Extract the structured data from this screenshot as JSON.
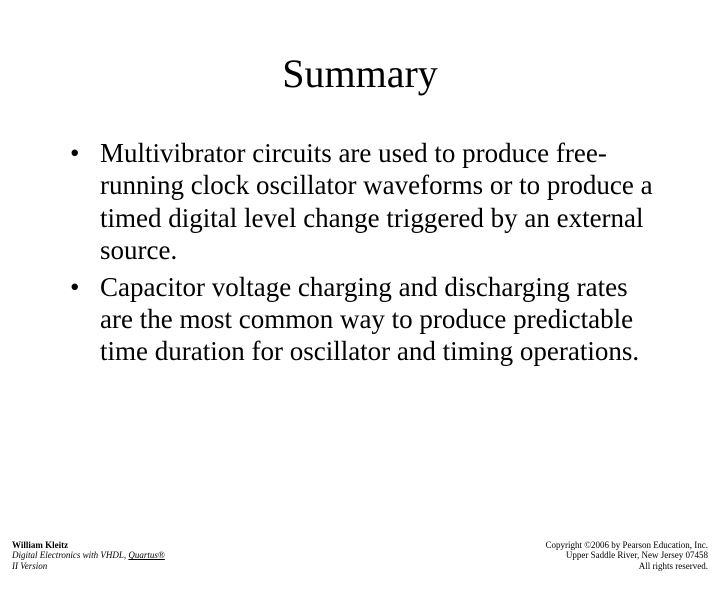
{
  "title": "Summary",
  "bullets": [
    "Multivibrator circuits are used to produce free-running clock oscillator waveforms or to produce a timed digital level change triggered by an external source.",
    "Capacitor voltage charging and discharging rates are the most common way to produce predictable time duration for oscillator and timing operations."
  ],
  "footer": {
    "left": {
      "author": "William Kleitz",
      "book_prefix": "Digital Electronics with VHDL, ",
      "book_underline": "Quartus®",
      "version": "II Version"
    },
    "right": {
      "line1": "Copyright ©2006 by Pearson Education, Inc.",
      "line2": "Upper Saddle River, New Jersey 07458",
      "line3": "All rights reserved."
    }
  },
  "colors": {
    "background": "#ffffff",
    "text": "#000000"
  },
  "typography": {
    "title_fontsize": 40,
    "body_fontsize": 27,
    "footer_fontsize": 9,
    "font_family": "Times New Roman"
  }
}
